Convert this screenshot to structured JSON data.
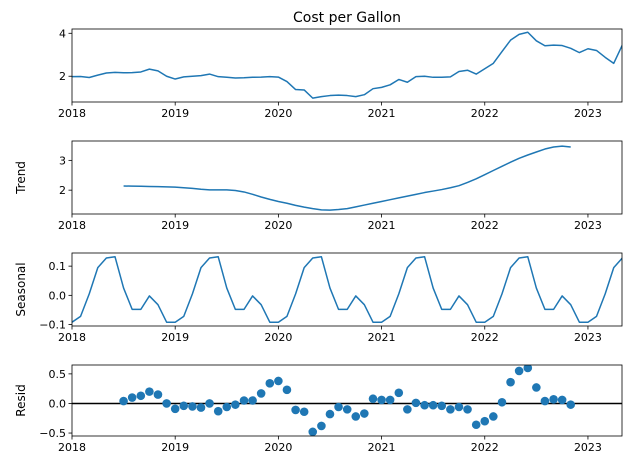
{
  "chart_data": [
    {
      "type": "line",
      "title": "Cost per Gallon",
      "ylabel": "",
      "xlim": [
        2018.0,
        2023.33
      ],
      "ylim": [
        0.8,
        4.2
      ],
      "x_ticks": [
        2018,
        2019,
        2020,
        2021,
        2022,
        2023
      ],
      "y_ticks": [
        2,
        4
      ],
      "series": [
        {
          "x": [
            2018.0,
            2018.083,
            2018.167,
            2018.25,
            2018.333,
            2018.417,
            2018.5,
            2018.583,
            2018.667,
            2018.75,
            2018.833,
            2018.917,
            2019.0,
            2019.083,
            2019.167,
            2019.25,
            2019.333,
            2019.417,
            2019.5,
            2019.583,
            2019.667,
            2019.75,
            2019.833,
            2019.917,
            2020.0,
            2020.083,
            2020.167,
            2020.25,
            2020.333,
            2020.417,
            2020.5,
            2020.583,
            2020.667,
            2020.75,
            2020.833,
            2020.917,
            2021.0,
            2021.083,
            2021.167,
            2021.25,
            2021.333,
            2021.417,
            2021.5,
            2021.583,
            2021.667,
            2021.75,
            2021.833,
            2021.917,
            2022.0,
            2022.083,
            2022.167,
            2022.25,
            2022.333,
            2022.417,
            2022.5,
            2022.583,
            2022.667,
            2022.75,
            2022.833,
            2022.917,
            2023.0,
            2023.083,
            2023.167,
            2023.25,
            2023.333
          ],
          "values": [
            1.98,
            1.99,
            1.94,
            2.05,
            2.15,
            2.18,
            2.16,
            2.17,
            2.2,
            2.33,
            2.25,
            2.0,
            1.87,
            1.97,
            2.0,
            2.03,
            2.1,
            1.98,
            1.95,
            1.92,
            1.93,
            1.95,
            1.96,
            1.98,
            1.96,
            1.75,
            1.38,
            1.36,
            0.98,
            1.05,
            1.1,
            1.12,
            1.1,
            1.05,
            1.14,
            1.42,
            1.48,
            1.6,
            1.85,
            1.72,
            1.98,
            2.0,
            1.95,
            1.95,
            1.97,
            2.22,
            2.28,
            2.1,
            2.35,
            2.6,
            3.15,
            3.68,
            3.95,
            4.05,
            3.65,
            3.42,
            3.45,
            3.43,
            3.3,
            3.1,
            3.28,
            3.2,
            2.88,
            2.6,
            3.45
          ]
        }
      ]
    },
    {
      "type": "line",
      "title": "",
      "ylabel": "Trend",
      "xlim": [
        2018.0,
        2023.33
      ],
      "ylim": [
        1.2,
        3.65
      ],
      "x_ticks": [
        2018,
        2019,
        2020,
        2021,
        2022,
        2023
      ],
      "y_ticks": [
        2,
        3
      ],
      "series": [
        {
          "x": [
            2018.5,
            2018.583,
            2018.667,
            2018.75,
            2018.833,
            2018.917,
            2019.0,
            2019.083,
            2019.167,
            2019.25,
            2019.333,
            2019.417,
            2019.5,
            2019.583,
            2019.667,
            2019.75,
            2019.833,
            2019.917,
            2020.0,
            2020.083,
            2020.167,
            2020.25,
            2020.333,
            2020.417,
            2020.5,
            2020.583,
            2020.667,
            2020.75,
            2020.833,
            2020.917,
            2021.0,
            2021.083,
            2021.167,
            2021.25,
            2021.333,
            2021.417,
            2021.5,
            2021.583,
            2021.667,
            2021.75,
            2021.833,
            2021.917,
            2022.0,
            2022.083,
            2022.167,
            2022.25,
            2022.333,
            2022.417,
            2022.5,
            2022.583,
            2022.667,
            2022.75,
            2022.833
          ],
          "values": [
            2.14,
            2.135,
            2.13,
            2.125,
            2.12,
            2.11,
            2.1,
            2.08,
            2.06,
            2.03,
            2.01,
            2.01,
            2.01,
            1.99,
            1.94,
            1.86,
            1.77,
            1.69,
            1.62,
            1.56,
            1.49,
            1.43,
            1.38,
            1.34,
            1.33,
            1.35,
            1.38,
            1.44,
            1.5,
            1.56,
            1.62,
            1.68,
            1.74,
            1.8,
            1.86,
            1.92,
            1.97,
            2.02,
            2.08,
            2.15,
            2.26,
            2.38,
            2.52,
            2.66,
            2.8,
            2.94,
            3.07,
            3.18,
            3.28,
            3.38,
            3.45,
            3.48,
            3.45
          ]
        }
      ]
    },
    {
      "type": "line",
      "title": "",
      "ylabel": "Seasonal",
      "xlim": [
        2018.0,
        2023.33
      ],
      "ylim": [
        -0.105,
        0.145
      ],
      "x_ticks": [
        2018,
        2019,
        2020,
        2021,
        2022,
        2023
      ],
      "y_ticks": [
        -0.1,
        0.0,
        0.1
      ],
      "y_tick_labels": [
        "−0.1",
        "0.0",
        "0.1"
      ],
      "series": [
        {
          "x": [
            2018.0,
            2018.083,
            2018.167,
            2018.25,
            2018.333,
            2018.417,
            2018.5,
            2018.583,
            2018.667,
            2018.75,
            2018.833,
            2018.917,
            2019.0,
            2019.083,
            2019.167,
            2019.25,
            2019.333,
            2019.417,
            2019.5,
            2019.583,
            2019.667,
            2019.75,
            2019.833,
            2019.917,
            2020.0,
            2020.083,
            2020.167,
            2020.25,
            2020.333,
            2020.417,
            2020.5,
            2020.583,
            2020.667,
            2020.75,
            2020.833,
            2020.917,
            2021.0,
            2021.083,
            2021.167,
            2021.25,
            2021.333,
            2021.417,
            2021.5,
            2021.583,
            2021.667,
            2021.75,
            2021.833,
            2021.917,
            2022.0,
            2022.083,
            2022.167,
            2022.25,
            2022.333,
            2022.417,
            2022.5,
            2022.583,
            2022.667,
            2022.75,
            2022.833,
            2022.917,
            2023.0,
            2023.083,
            2023.167,
            2023.25,
            2023.333
          ],
          "values": [
            -0.092,
            -0.072,
            0.005,
            0.095,
            0.128,
            0.132,
            0.025,
            -0.048,
            -0.048,
            -0.002,
            -0.032,
            -0.092,
            -0.092,
            -0.072,
            0.005,
            0.095,
            0.128,
            0.132,
            0.025,
            -0.048,
            -0.048,
            -0.002,
            -0.032,
            -0.092,
            -0.092,
            -0.072,
            0.005,
            0.095,
            0.128,
            0.132,
            0.025,
            -0.048,
            -0.048,
            -0.002,
            -0.032,
            -0.092,
            -0.092,
            -0.072,
            0.005,
            0.095,
            0.128,
            0.132,
            0.025,
            -0.048,
            -0.048,
            -0.002,
            -0.032,
            -0.092,
            -0.092,
            -0.072,
            0.005,
            0.095,
            0.128,
            0.132,
            0.025,
            -0.048,
            -0.048,
            -0.002,
            -0.032,
            -0.092,
            -0.092,
            -0.072,
            0.005,
            0.095,
            0.128
          ]
        }
      ]
    },
    {
      "type": "scatter",
      "title": "",
      "ylabel": "Resid",
      "xlim": [
        2018.0,
        2023.33
      ],
      "ylim": [
        -0.55,
        0.65
      ],
      "x_ticks": [
        2018,
        2019,
        2020,
        2021,
        2022,
        2023
      ],
      "y_ticks": [
        -0.5,
        0.0,
        0.5
      ],
      "y_tick_labels": [
        "−0.5",
        "0.0",
        "0.5"
      ],
      "hline": 0,
      "series": [
        {
          "x": [
            2018.5,
            2018.583,
            2018.667,
            2018.75,
            2018.833,
            2018.917,
            2019.0,
            2019.083,
            2019.167,
            2019.25,
            2019.333,
            2019.417,
            2019.5,
            2019.583,
            2019.667,
            2019.75,
            2019.833,
            2019.917,
            2020.0,
            2020.083,
            2020.167,
            2020.25,
            2020.333,
            2020.417,
            2020.5,
            2020.583,
            2020.667,
            2020.75,
            2020.833,
            2020.917,
            2021.0,
            2021.083,
            2021.167,
            2021.25,
            2021.333,
            2021.417,
            2021.5,
            2021.583,
            2021.667,
            2021.75,
            2021.833,
            2021.917,
            2022.0,
            2022.083,
            2022.167,
            2022.25,
            2022.333,
            2022.417,
            2022.5,
            2022.583,
            2022.667,
            2022.75,
            2022.833
          ],
          "values": [
            0.04,
            0.1,
            0.13,
            0.2,
            0.15,
            0.0,
            -0.09,
            -0.04,
            -0.05,
            -0.07,
            0.0,
            -0.13,
            -0.06,
            -0.02,
            0.05,
            0.05,
            0.17,
            0.34,
            0.38,
            0.23,
            -0.11,
            -0.14,
            -0.48,
            -0.38,
            -0.18,
            -0.06,
            -0.1,
            -0.22,
            -0.17,
            0.08,
            0.06,
            0.06,
            0.18,
            -0.1,
            0.01,
            -0.03,
            -0.03,
            -0.04,
            -0.1,
            -0.06,
            -0.1,
            -0.36,
            -0.3,
            -0.22,
            0.02,
            0.36,
            0.55,
            0.6,
            0.27,
            0.04,
            0.07,
            0.06,
            -0.02
          ]
        }
      ]
    }
  ]
}
